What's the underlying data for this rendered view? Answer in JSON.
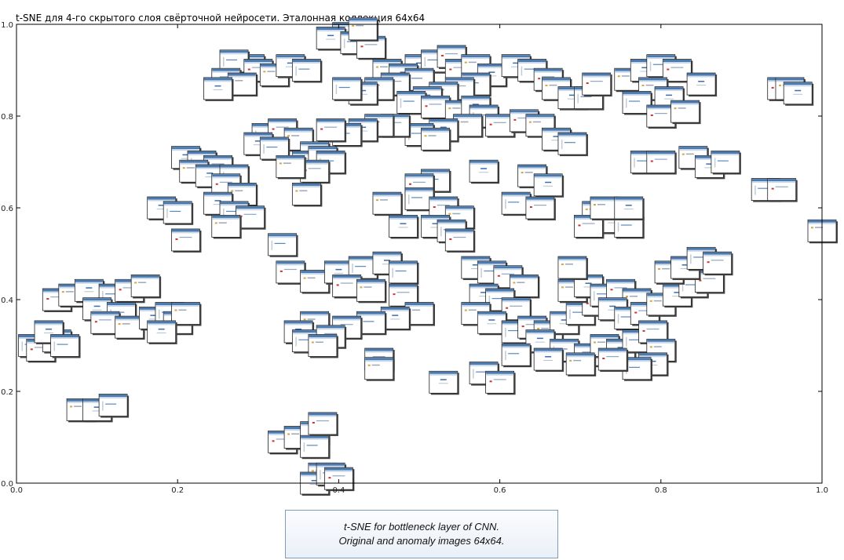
{
  "chart_data": {
    "type": "scatter",
    "title": "t-SNE для 4-го скрытого слоя свёрточной нейросети. Эталонная коллекция 64x64",
    "xlabel": "",
    "ylabel": "",
    "xlim": [
      0.0,
      1.0
    ],
    "ylim": [
      0.0,
      1.0
    ],
    "x_ticks": [
      "0.0",
      "0.2",
      "0.4",
      "0.6",
      "0.8",
      "1.0"
    ],
    "y_ticks": [
      "0.0",
      "0.2",
      "0.4",
      "0.6",
      "0.8",
      "1.0"
    ],
    "grid": false,
    "marker": "thumbnail",
    "points": [
      [
        0.41,
        0.98
      ],
      [
        0.39,
        0.97
      ],
      [
        0.42,
        0.96
      ],
      [
        0.44,
        0.95
      ],
      [
        0.43,
        0.99
      ],
      [
        0.5,
        0.91
      ],
      [
        0.52,
        0.92
      ],
      [
        0.54,
        0.93
      ],
      [
        0.46,
        0.9
      ],
      [
        0.48,
        0.89
      ],
      [
        0.5,
        0.88
      ],
      [
        0.47,
        0.87
      ],
      [
        0.45,
        0.86
      ],
      [
        0.43,
        0.85
      ],
      [
        0.41,
        0.86
      ],
      [
        0.55,
        0.9
      ],
      [
        0.57,
        0.91
      ],
      [
        0.59,
        0.89
      ],
      [
        0.57,
        0.87
      ],
      [
        0.55,
        0.86
      ],
      [
        0.53,
        0.85
      ],
      [
        0.51,
        0.84
      ],
      [
        0.49,
        0.83
      ],
      [
        0.52,
        0.82
      ],
      [
        0.55,
        0.81
      ],
      [
        0.57,
        0.82
      ],
      [
        0.58,
        0.8
      ],
      [
        0.6,
        0.78
      ],
      [
        0.56,
        0.78
      ],
      [
        0.53,
        0.77
      ],
      [
        0.5,
        0.76
      ],
      [
        0.47,
        0.78
      ],
      [
        0.45,
        0.78
      ],
      [
        0.43,
        0.77
      ],
      [
        0.41,
        0.76
      ],
      [
        0.39,
        0.77
      ],
      [
        0.52,
        0.75
      ],
      [
        0.29,
        0.91
      ],
      [
        0.27,
        0.92
      ],
      [
        0.3,
        0.9
      ],
      [
        0.32,
        0.89
      ],
      [
        0.34,
        0.91
      ],
      [
        0.36,
        0.9
      ],
      [
        0.26,
        0.88
      ],
      [
        0.28,
        0.87
      ],
      [
        0.25,
        0.86
      ],
      [
        0.31,
        0.76
      ],
      [
        0.33,
        0.77
      ],
      [
        0.35,
        0.75
      ],
      [
        0.3,
        0.74
      ],
      [
        0.32,
        0.73
      ],
      [
        0.37,
        0.72
      ],
      [
        0.36,
        0.7
      ],
      [
        0.38,
        0.71
      ],
      [
        0.39,
        0.7
      ],
      [
        0.37,
        0.68
      ],
      [
        0.34,
        0.69
      ],
      [
        0.21,
        0.71
      ],
      [
        0.23,
        0.7
      ],
      [
        0.25,
        0.69
      ],
      [
        0.22,
        0.68
      ],
      [
        0.24,
        0.67
      ],
      [
        0.27,
        0.67
      ],
      [
        0.26,
        0.65
      ],
      [
        0.28,
        0.63
      ],
      [
        0.25,
        0.61
      ],
      [
        0.27,
        0.59
      ],
      [
        0.29,
        0.58
      ],
      [
        0.26,
        0.56
      ],
      [
        0.18,
        0.6
      ],
      [
        0.2,
        0.59
      ],
      [
        0.21,
        0.53
      ],
      [
        0.36,
        0.63
      ],
      [
        0.62,
        0.91
      ],
      [
        0.64,
        0.9
      ],
      [
        0.66,
        0.88
      ],
      [
        0.67,
        0.86
      ],
      [
        0.69,
        0.84
      ],
      [
        0.71,
        0.84
      ],
      [
        0.63,
        0.79
      ],
      [
        0.65,
        0.78
      ],
      [
        0.67,
        0.75
      ],
      [
        0.69,
        0.74
      ],
      [
        0.72,
        0.87
      ],
      [
        0.76,
        0.88
      ],
      [
        0.78,
        0.9
      ],
      [
        0.8,
        0.91
      ],
      [
        0.82,
        0.9
      ],
      [
        0.79,
        0.86
      ],
      [
        0.81,
        0.84
      ],
      [
        0.77,
        0.83
      ],
      [
        0.8,
        0.8
      ],
      [
        0.83,
        0.81
      ],
      [
        0.85,
        0.87
      ],
      [
        0.78,
        0.7
      ],
      [
        0.8,
        0.7
      ],
      [
        0.84,
        0.71
      ],
      [
        0.86,
        0.69
      ],
      [
        0.88,
        0.7
      ],
      [
        0.95,
        0.86
      ],
      [
        0.96,
        0.86
      ],
      [
        0.97,
        0.85
      ],
      [
        0.93,
        0.64
      ],
      [
        0.95,
        0.64
      ],
      [
        1.0,
        0.55
      ],
      [
        0.58,
        0.68
      ],
      [
        0.52,
        0.66
      ],
      [
        0.5,
        0.65
      ],
      [
        0.46,
        0.61
      ],
      [
        0.48,
        0.56
      ],
      [
        0.5,
        0.62
      ],
      [
        0.53,
        0.6
      ],
      [
        0.55,
        0.58
      ],
      [
        0.52,
        0.56
      ],
      [
        0.54,
        0.55
      ],
      [
        0.55,
        0.53
      ],
      [
        0.64,
        0.67
      ],
      [
        0.66,
        0.65
      ],
      [
        0.62,
        0.61
      ],
      [
        0.65,
        0.6
      ],
      [
        0.72,
        0.59
      ],
      [
        0.74,
        0.57
      ],
      [
        0.76,
        0.56
      ],
      [
        0.71,
        0.56
      ],
      [
        0.73,
        0.6
      ],
      [
        0.76,
        0.6
      ],
      [
        0.33,
        0.52
      ],
      [
        0.34,
        0.46
      ],
      [
        0.37,
        0.44
      ],
      [
        0.4,
        0.46
      ],
      [
        0.43,
        0.47
      ],
      [
        0.41,
        0.43
      ],
      [
        0.44,
        0.42
      ],
      [
        0.46,
        0.48
      ],
      [
        0.48,
        0.46
      ],
      [
        0.48,
        0.41
      ],
      [
        0.5,
        0.37
      ],
      [
        0.47,
        0.36
      ],
      [
        0.44,
        0.35
      ],
      [
        0.41,
        0.34
      ],
      [
        0.37,
        0.35
      ],
      [
        0.35,
        0.33
      ],
      [
        0.36,
        0.31
      ],
      [
        0.39,
        0.32
      ],
      [
        0.38,
        0.3
      ],
      [
        0.57,
        0.47
      ],
      [
        0.59,
        0.46
      ],
      [
        0.61,
        0.45
      ],
      [
        0.63,
        0.43
      ],
      [
        0.58,
        0.41
      ],
      [
        0.6,
        0.4
      ],
      [
        0.62,
        0.38
      ],
      [
        0.57,
        0.37
      ],
      [
        0.59,
        0.35
      ],
      [
        0.62,
        0.33
      ],
      [
        0.64,
        0.34
      ],
      [
        0.66,
        0.33
      ],
      [
        0.68,
        0.35
      ],
      [
        0.7,
        0.37
      ],
      [
        0.72,
        0.39
      ],
      [
        0.69,
        0.42
      ],
      [
        0.71,
        0.43
      ],
      [
        0.73,
        0.41
      ],
      [
        0.75,
        0.42
      ],
      [
        0.77,
        0.4
      ],
      [
        0.74,
        0.38
      ],
      [
        0.76,
        0.36
      ],
      [
        0.78,
        0.37
      ],
      [
        0.8,
        0.39
      ],
      [
        0.82,
        0.41
      ],
      [
        0.84,
        0.43
      ],
      [
        0.86,
        0.44
      ],
      [
        0.81,
        0.46
      ],
      [
        0.83,
        0.47
      ],
      [
        0.85,
        0.49
      ],
      [
        0.87,
        0.48
      ],
      [
        0.69,
        0.47
      ],
      [
        0.65,
        0.31
      ],
      [
        0.68,
        0.29
      ],
      [
        0.71,
        0.28
      ],
      [
        0.73,
        0.3
      ],
      [
        0.75,
        0.29
      ],
      [
        0.77,
        0.31
      ],
      [
        0.79,
        0.33
      ],
      [
        0.8,
        0.29
      ],
      [
        0.79,
        0.26
      ],
      [
        0.77,
        0.25
      ],
      [
        0.74,
        0.27
      ],
      [
        0.7,
        0.26
      ],
      [
        0.66,
        0.27
      ],
      [
        0.62,
        0.28
      ],
      [
        0.05,
        0.4
      ],
      [
        0.07,
        0.41
      ],
      [
        0.09,
        0.42
      ],
      [
        0.12,
        0.41
      ],
      [
        0.14,
        0.42
      ],
      [
        0.16,
        0.43
      ],
      [
        0.1,
        0.38
      ],
      [
        0.13,
        0.37
      ],
      [
        0.11,
        0.35
      ],
      [
        0.14,
        0.34
      ],
      [
        0.17,
        0.36
      ],
      [
        0.19,
        0.37
      ],
      [
        0.2,
        0.35
      ],
      [
        0.21,
        0.37
      ],
      [
        0.18,
        0.33
      ],
      [
        0.02,
        0.3
      ],
      [
        0.03,
        0.29
      ],
      [
        0.05,
        0.31
      ],
      [
        0.04,
        0.33
      ],
      [
        0.06,
        0.3
      ],
      [
        0.45,
        0.27
      ],
      [
        0.45,
        0.25
      ],
      [
        0.53,
        0.22
      ],
      [
        0.58,
        0.24
      ],
      [
        0.6,
        0.22
      ],
      [
        0.08,
        0.16
      ],
      [
        0.1,
        0.16
      ],
      [
        0.12,
        0.17
      ],
      [
        0.33,
        0.09
      ],
      [
        0.35,
        0.1
      ],
      [
        0.37,
        0.11
      ],
      [
        0.37,
        0.08
      ],
      [
        0.38,
        0.13
      ],
      [
        0.38,
        0.02
      ],
      [
        0.37,
        0.0
      ],
      [
        0.39,
        0.02
      ],
      [
        0.4,
        0.01
      ]
    ]
  },
  "caption": {
    "line1": "t-SNE for bottleneck layer of CNN.",
    "line2": "Original and anomaly images 64x64."
  },
  "colors": {
    "axis": "#000000",
    "thumb_border": "#222222",
    "thumb_header": "#4a7ab0",
    "thumb_subheader": "#c9d9ea",
    "thumb_body": "#ffffff"
  }
}
